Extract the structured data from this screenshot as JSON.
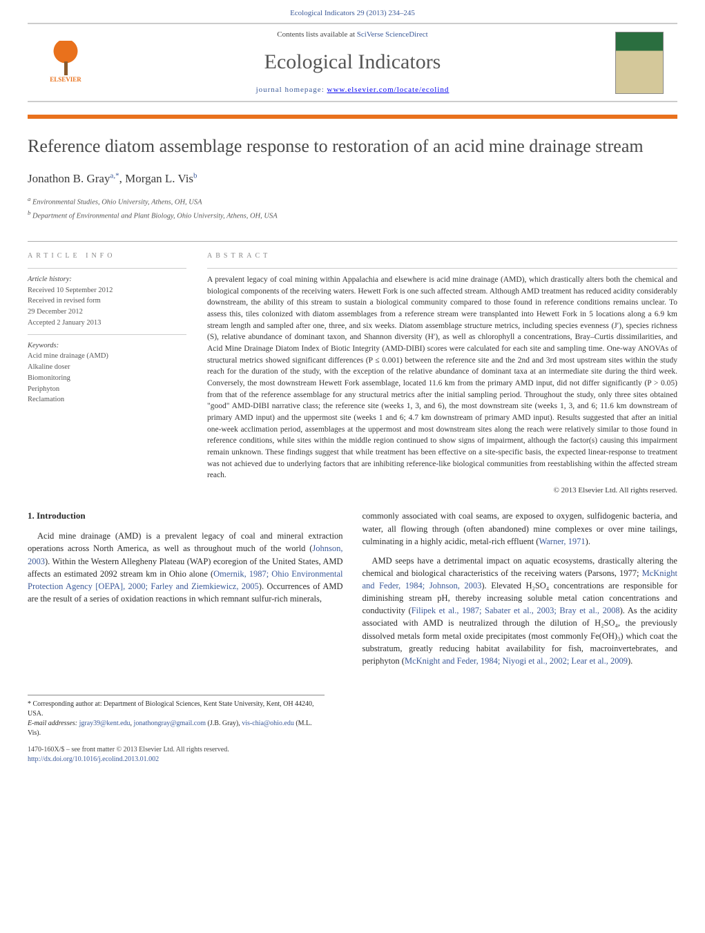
{
  "journal_ref": "Ecological Indicators 29 (2013) 234–245",
  "header": {
    "contents_prefix": "Contents lists available at ",
    "contents_link": "SciVerse ScienceDirect",
    "journal_title": "Ecological Indicators",
    "homepage_prefix": "journal homepage: ",
    "homepage_url": "www.elsevier.com/locate/ecolind",
    "publisher_logo_text": "ELSEVIER"
  },
  "article": {
    "title": "Reference diatom assemblage response to restoration of an acid mine drainage stream",
    "authors_html": "Jonathon B. Gray",
    "author1_sup": "a,*",
    "author2": ", Morgan L. Vis",
    "author2_sup": "b",
    "affiliations": [
      "Environmental Studies, Ohio University, Athens, OH, USA",
      "Department of Environmental and Plant Biology, Ohio University, Athens, OH, USA"
    ]
  },
  "info": {
    "label_info": "ARTICLE INFO",
    "label_abstract": "ABSTRACT",
    "history_hdr": "Article history:",
    "history": [
      "Received 10 September 2012",
      "Received in revised form",
      "29 December 2012",
      "Accepted 2 January 2013"
    ],
    "keywords_hdr": "Keywords:",
    "keywords": [
      "Acid mine drainage (AMD)",
      "Alkaline doser",
      "Biomonitoring",
      "Periphyton",
      "Reclamation"
    ]
  },
  "abstract": "A prevalent legacy of coal mining within Appalachia and elsewhere is acid mine drainage (AMD), which drastically alters both the chemical and biological components of the receiving waters. Hewett Fork is one such affected stream. Although AMD treatment has reduced acidity considerably downstream, the ability of this stream to sustain a biological community compared to those found in reference conditions remains unclear. To assess this, tiles colonized with diatom assemblages from a reference stream were transplanted into Hewett Fork in 5 locations along a 6.9 km stream length and sampled after one, three, and six weeks. Diatom assemblage structure metrics, including species evenness (J′), species richness (S), relative abundance of dominant taxon, and Shannon diversity (H′), as well as chlorophyll a concentrations, Bray–Curtis dissimilarities, and Acid Mine Drainage Diatom Index of Biotic Integrity (AMD-DIBI) scores were calculated for each site and sampling time. One-way ANOVAs of structural metrics showed significant differences (P ≤ 0.001) between the reference site and the 2nd and 3rd most upstream sites within the study reach for the duration of the study, with the exception of the relative abundance of dominant taxa at an intermediate site during the third week. Conversely, the most downstream Hewett Fork assemblage, located 11.6 km from the primary AMD input, did not differ significantly (P > 0.05) from that of the reference assemblage for any structural metrics after the initial sampling period. Throughout the study, only three sites obtained \"good\" AMD-DIBI narrative class; the reference site (weeks 1, 3, and 6), the most downstream site (weeks 1, 3, and 6; 11.6 km downstream of primary AMD input) and the uppermost site (weeks 1 and 6; 4.7 km downstream of primary AMD input). Results suggested that after an initial one-week acclimation period, assemblages at the uppermost and most downstream sites along the reach were relatively similar to those found in reference conditions, while sites within the middle region continued to show signs of impairment, although the factor(s) causing this impairment remain unknown. These findings suggest that while treatment has been effective on a site-specific basis, the expected linear-response to treatment was not achieved due to underlying factors that are inhibiting reference-like biological communities from reestablishing within the affected stream reach.",
  "copyright": "© 2013 Elsevier Ltd. All rights reserved.",
  "body": {
    "section_heading": "1. Introduction",
    "col1_p1_pre": "Acid mine drainage (AMD) is a prevalent legacy of coal and mineral extraction operations across North America, as well as throughout much of the world (",
    "col1_p1_link1": "Johnson, 2003",
    "col1_p1_mid1": "). Within the Western Allegheny Plateau (WAP) ecoregion of the United States, AMD affects an estimated 2092 stream km in Ohio alone (",
    "col1_p1_link2": "Omernik, 1987; Ohio Environmental Protection Agency [OEPA], 2000; Farley and Ziemkiewicz, 2005",
    "col1_p1_post": "). Occurrences of AMD are the result of a series of oxidation reactions in which remnant sulfur-rich minerals,",
    "col2_p1_pre": "commonly associated with coal seams, are exposed to oxygen, sulfidogenic bacteria, and water, all flowing through (often abandoned) mine complexes or over mine tailings, culminating in a highly acidic, metal-rich effluent (",
    "col2_p1_link1": "Warner, 1971",
    "col2_p1_post": ").",
    "col2_p2_pre": "AMD seeps have a detrimental impact on aquatic ecosystems, drastically altering the chemical and biological characteristics of the receiving waters (Parsons, 1977; ",
    "col2_p2_link1": "McKnight and Feder, 1984; Johnson, 2003",
    "col2_p2_mid1": "). Elevated H₂SO₄ concentrations are responsible for diminishing stream pH, thereby increasing soluble metal cation concentrations and conductivity (",
    "col2_p2_link2": "Filipek et al., 1987; Sabater et al., 2003; Bray et al., 2008",
    "col2_p2_mid2": "). As the acidity associated with AMD is neutralized through the dilution of H₂SO₄, the previously dissolved metals form metal oxide precipitates (most commonly Fe(OH)₃) which coat the substratum, greatly reducing habitat availability for fish, macroinvertebrates, and periphyton (",
    "col2_p2_link3": "McKnight and Feder, 1984; Niyogi et al., 2002; Lear et al., 2009",
    "col2_p2_post": ")."
  },
  "footnotes": {
    "corr": "* Corresponding author at: Department of Biological Sciences, Kent State University, Kent, OH 44240, USA.",
    "email_label": "E-mail addresses: ",
    "email1": "jgray39@kent.edu",
    "email1b": "jonathongray@gmail.com",
    "email1_who": " (J.B. Gray), ",
    "email2": "vis-chia@ohio.edu",
    "email2_who": " (M.L. Vis)."
  },
  "doi": {
    "line1": "1470-160X/$ – see front matter © 2013 Elsevier Ltd. All rights reserved.",
    "url": "http://dx.doi.org/10.1016/j.ecolind.2013.01.002"
  },
  "colors": {
    "accent_orange": "#e9711c",
    "link_blue": "#3b5998",
    "text_gray": "#4a4a4a"
  }
}
